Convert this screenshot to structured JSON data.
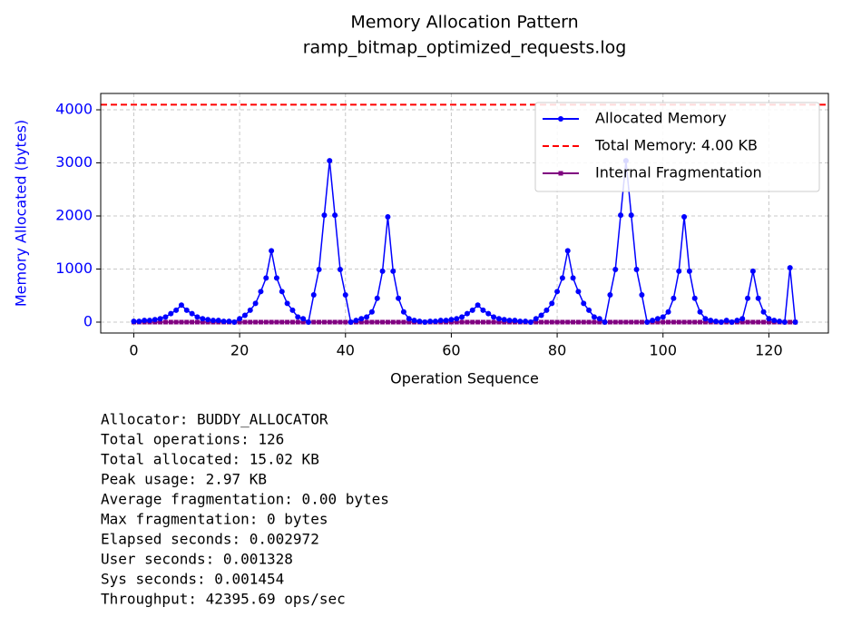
{
  "chart_data": {
    "type": "line",
    "title": "Memory Allocation Pattern",
    "subtitle": "ramp_bitmap_optimized_requests.log",
    "x_label": "Operation Sequence",
    "y_label": "Memory Allocated (bytes)",
    "x": [
      0,
      1,
      2,
      3,
      4,
      5,
      6,
      7,
      8,
      9,
      10,
      11,
      12,
      13,
      14,
      15,
      16,
      17,
      18,
      19,
      20,
      21,
      22,
      23,
      24,
      25,
      26,
      27,
      28,
      29,
      30,
      31,
      32,
      33,
      34,
      35,
      36,
      37,
      38,
      39,
      40,
      41,
      42,
      43,
      44,
      45,
      46,
      47,
      48,
      49,
      50,
      51,
      52,
      53,
      54,
      55,
      56,
      57,
      58,
      59,
      60,
      61,
      62,
      63,
      64,
      65,
      66,
      67,
      68,
      69,
      70,
      71,
      72,
      73,
      74,
      75,
      76,
      77,
      78,
      79,
      80,
      81,
      82,
      83,
      84,
      85,
      86,
      87,
      88,
      89,
      90,
      91,
      92,
      93,
      94,
      95,
      96,
      97,
      98,
      99,
      100,
      101,
      102,
      103,
      104,
      105,
      106,
      107,
      108,
      109,
      110,
      111,
      112,
      113,
      114,
      115,
      116,
      117,
      118,
      119,
      120,
      121,
      122,
      123,
      124,
      125
    ],
    "series": [
      {
        "name": "Allocated Memory",
        "color": "#0000ff",
        "marker": "circle",
        "values": [
          16,
          16,
          32,
          32,
          48,
          64,
          96,
          160,
          224,
          320,
          224,
          160,
          96,
          64,
          48,
          32,
          32,
          16,
          16,
          0,
          64,
          128,
          224,
          352,
          576,
          832,
          1344,
          832,
          576,
          352,
          224,
          96,
          64,
          0,
          512,
          992,
          2016,
          3040,
          2016,
          992,
          512,
          0,
          32,
          64,
          96,
          192,
          448,
          960,
          1984,
          960,
          448,
          192,
          64,
          32,
          16,
          0,
          16,
          16,
          32,
          32,
          48,
          64,
          96,
          160,
          224,
          320,
          224,
          160,
          96,
          64,
          48,
          32,
          32,
          16,
          16,
          0,
          64,
          128,
          224,
          352,
          576,
          832,
          1344,
          832,
          576,
          352,
          224,
          96,
          64,
          0,
          512,
          992,
          2016,
          3040,
          2016,
          992,
          512,
          0,
          32,
          64,
          96,
          192,
          448,
          960,
          1984,
          960,
          448,
          192,
          64,
          32,
          16,
          0,
          32,
          0,
          32,
          64,
          448,
          960,
          448,
          192,
          64,
          32,
          16,
          0,
          1024,
          0
        ]
      },
      {
        "name": "Internal Fragmentation",
        "color": "#800080",
        "marker": "square",
        "values": [
          0,
          0,
          0,
          0,
          0,
          0,
          0,
          0,
          0,
          0,
          0,
          0,
          0,
          0,
          0,
          0,
          0,
          0,
          0,
          0,
          0,
          0,
          0,
          0,
          0,
          0,
          0,
          0,
          0,
          0,
          0,
          0,
          0,
          0,
          0,
          0,
          0,
          0,
          0,
          0,
          0,
          0,
          0,
          0,
          0,
          0,
          0,
          0,
          0,
          0,
          0,
          0,
          0,
          0,
          0,
          0,
          0,
          0,
          0,
          0,
          0,
          0,
          0,
          0,
          0,
          0,
          0,
          0,
          0,
          0,
          0,
          0,
          0,
          0,
          0,
          0,
          0,
          0,
          0,
          0,
          0,
          0,
          0,
          0,
          0,
          0,
          0,
          0,
          0,
          0,
          0,
          0,
          0,
          0,
          0,
          0,
          0,
          0,
          0,
          0,
          0,
          0,
          0,
          0,
          0,
          0,
          0,
          0,
          0,
          0,
          0,
          0,
          0,
          0,
          0,
          0,
          0,
          0,
          0,
          0,
          0,
          0,
          0,
          0,
          0,
          0
        ]
      }
    ],
    "reference_line": {
      "name": "Total Memory: 4.00 KB",
      "value": 4096,
      "color": "#ff0000"
    },
    "xlim": [
      -6.25,
      131.25
    ],
    "ylim": [
      -205,
      4308
    ],
    "xticks": [
      0,
      20,
      40,
      60,
      80,
      100,
      120
    ],
    "yticks": [
      0,
      1000,
      2000,
      3000,
      4000
    ],
    "grid": true,
    "legend": "upper right"
  },
  "stats": [
    "Allocator: BUDDY_ALLOCATOR",
    "Total operations: 126",
    "Total allocated: 15.02 KB",
    "Peak usage: 2.97 KB",
    "Average fragmentation: 0.00 bytes",
    "Max fragmentation: 0 bytes",
    "Elapsed seconds: 0.002972",
    "User seconds: 0.001328",
    "Sys seconds: 0.001454",
    "Throughput: 42395.69 ops/sec"
  ]
}
